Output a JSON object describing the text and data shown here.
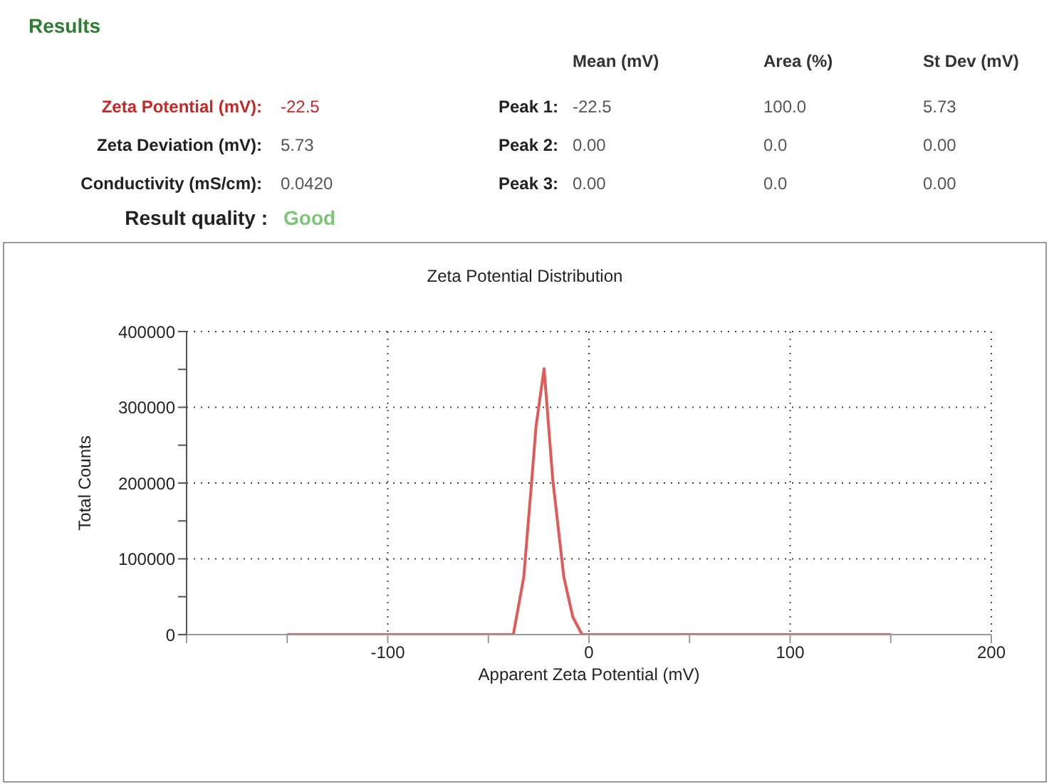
{
  "chart_data": {
    "type": "line",
    "title": "Zeta Potential Distribution",
    "xlabel": "Apparent Zeta Potential (mV)",
    "ylabel": "Total Counts",
    "annotations": [
      "Results",
      "Mean (mV)",
      "Area (%)",
      "St Dev (mV)",
      "Zeta Potential (mV):",
      "-22.5",
      "Peak 1:",
      "-22.5",
      "100.0",
      "5.73",
      "Zeta Deviation (mV):",
      "5.73",
      "Peak 2:",
      "0.00",
      "0.0",
      "0.00",
      "Conductivity (mS/cm):",
      "0.0420",
      "Peak 3:",
      "0.00",
      "0.0",
      "0.00",
      "Result quality :",
      "Good"
    ],
    "x": [
      -150,
      -100,
      -50,
      -37.6,
      -32.4,
      -28.4,
      -26.3,
      -22.3,
      -18,
      -12.5,
      -8,
      -3.4,
      0,
      50,
      100,
      150
    ],
    "series": [
      {
        "color": "#e05a5a",
        "values": [
          0,
          0,
          0,
          0,
          76000,
          205000,
          275000,
          351000,
          205000,
          76000,
          23000,
          0,
          0,
          0,
          0,
          0
        ]
      }
    ],
    "xlim": [
      -200,
      200
    ],
    "xticks": [
      {
        "value": -200,
        "label": null
      },
      {
        "value": -150,
        "label": null
      },
      -100,
      {
        "value": -50,
        "label": null
      },
      0,
      {
        "value": 50,
        "label": null
      },
      100,
      {
        "value": 150,
        "label": null
      },
      200
    ],
    "ylim": [
      0,
      400000
    ],
    "yticks": [
      0,
      {
        "value": 50000,
        "label": null
      },
      100000,
      {
        "value": 150000,
        "label": null
      },
      200000,
      {
        "value": 250000,
        "label": null
      },
      300000,
      {
        "value": 350000,
        "label": null
      },
      400000
    ],
    "grid": true,
    "legend": false,
    "marker": "none",
    "line_style": "solid"
  }
}
